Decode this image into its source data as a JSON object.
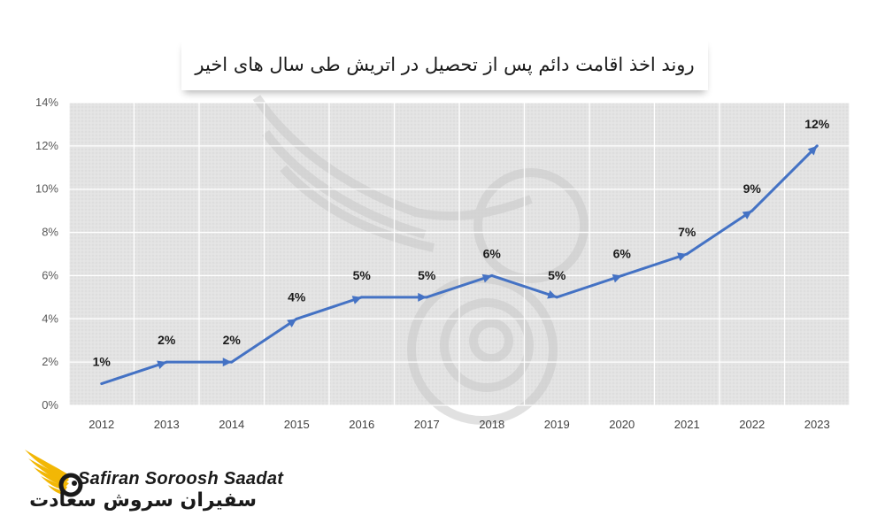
{
  "chart_data": {
    "type": "line",
    "title": "روند اخذ اقامت دائم پس از تحصیل در اتریش طی سال های اخیر",
    "xlabel": "",
    "ylabel": "",
    "categories": [
      "2012",
      "2013",
      "2014",
      "2015",
      "2016",
      "2017",
      "2018",
      "2019",
      "2020",
      "2021",
      "2022",
      "2023"
    ],
    "values": [
      1,
      2,
      2,
      4,
      5,
      5,
      6,
      5,
      6,
      7,
      9,
      12
    ],
    "data_labels": [
      "1%",
      "2%",
      "2%",
      "4%",
      "5%",
      "5%",
      "6%",
      "5%",
      "6%",
      "7%",
      "9%",
      "12%"
    ],
    "y_ticks": [
      "0%",
      "2%",
      "4%",
      "6%",
      "8%",
      "10%",
      "12%",
      "14%"
    ],
    "ylim": [
      0,
      14
    ],
    "grid": true,
    "line_color": "#4472C4",
    "marker": "arrow"
  },
  "brand": {
    "name_en": "Safiran Soroosh Saadat",
    "name_fa": "سفیران سروش سعادت",
    "accent_color": "#F2B705",
    "logo_icon": "winged-bird-icon"
  }
}
